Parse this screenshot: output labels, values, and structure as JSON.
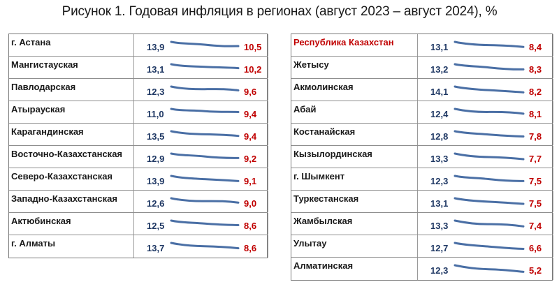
{
  "title": "Рисунок 1. Годовая инфляция в регионах (август 2023 – август 2024), %",
  "chart_data": {
    "type": "table",
    "columns": [
      {
        "rows": [
          {
            "region": "г. Астана",
            "start": "13,9",
            "end": "10,5",
            "highlight": false
          },
          {
            "region": "Мангистауская",
            "start": "13,1",
            "end": "10,2",
            "highlight": false
          },
          {
            "region": "Павлодарская",
            "start": "12,3",
            "end": "9,6",
            "highlight": false
          },
          {
            "region": "Атырауская",
            "start": "11,0",
            "end": "9,4",
            "highlight": false
          },
          {
            "region": "Карагандинская",
            "start": "13,5",
            "end": "9,4",
            "highlight": false
          },
          {
            "region": "Восточно-Казахстанская",
            "start": "12,9",
            "end": "9,2",
            "highlight": false
          },
          {
            "region": "Северо-Казахстанская",
            "start": "13,9",
            "end": "9,1",
            "highlight": false
          },
          {
            "region": "Западно-Казахстанская",
            "start": "12,6",
            "end": "9,0",
            "highlight": false
          },
          {
            "region": "Актюбинская",
            "start": "12,5",
            "end": "8,6",
            "highlight": false
          },
          {
            "region": "г. Алматы",
            "start": "13,7",
            "end": "8,6",
            "highlight": false
          }
        ]
      },
      {
        "rows": [
          {
            "region": "Республика Казахстан",
            "start": "13,1",
            "end": "8,4",
            "highlight": true
          },
          {
            "region": "Жетысу",
            "start": "13,2",
            "end": "8,3",
            "highlight": false
          },
          {
            "region": "Акмолинская",
            "start": "14,1",
            "end": "8,2",
            "highlight": false
          },
          {
            "region": "Абай",
            "start": "12,4",
            "end": "8,1",
            "highlight": false
          },
          {
            "region": "Костанайская",
            "start": "12,8",
            "end": "7,8",
            "highlight": false
          },
          {
            "region": "Кызылординская",
            "start": "13,3",
            "end": "7,7",
            "highlight": false
          },
          {
            "region": "г. Шымкент",
            "start": "12,3",
            "end": "7,5",
            "highlight": false
          },
          {
            "region": "Туркестанская",
            "start": "13,1",
            "end": "7,5",
            "highlight": false
          },
          {
            "region": "Жамбылская",
            "start": "13,3",
            "end": "7,4",
            "highlight": false
          },
          {
            "region": "Улытау",
            "start": "12,7",
            "end": "6,6",
            "highlight": false
          },
          {
            "region": "Алматинская",
            "start": "12,3",
            "end": "5,2",
            "highlight": false
          }
        ]
      }
    ],
    "colors": {
      "start_value": "#1f3864",
      "end_value": "#c00000",
      "sparkline": "#4a6fa5",
      "highlight_name": "#c00000"
    }
  }
}
